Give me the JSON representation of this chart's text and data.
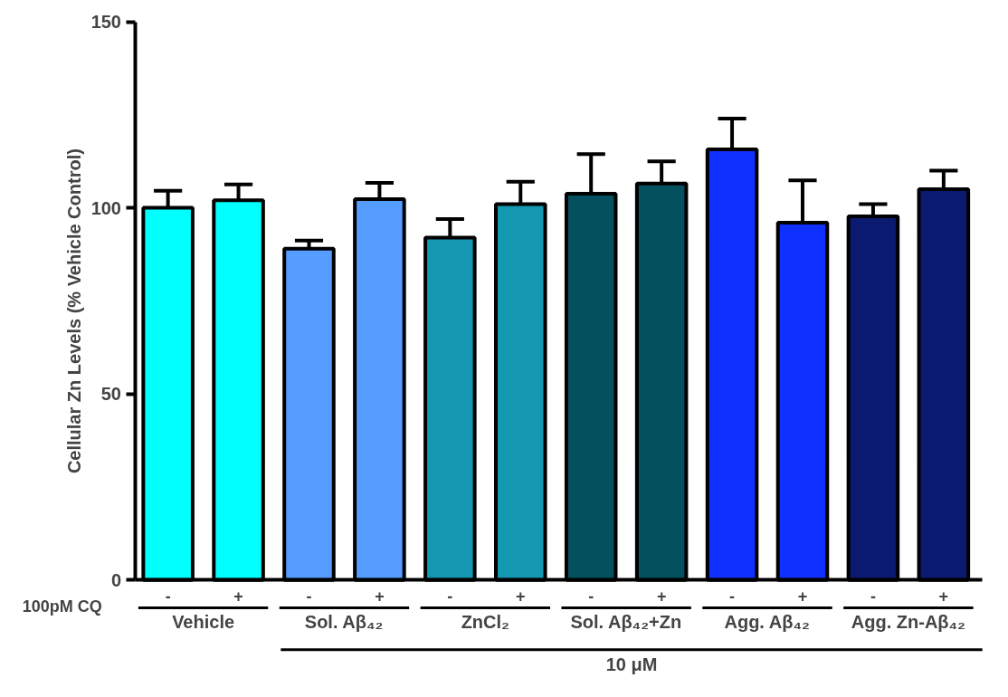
{
  "chart_data": {
    "type": "bar",
    "ylabel": "Cellular  Zn  Levels  (% Vehicle  Control)",
    "categories": [
      "-",
      "+",
      "-",
      "+",
      "-",
      "+",
      "-",
      "+",
      "-",
      "+",
      "-",
      "+"
    ],
    "values": [
      100,
      102,
      89,
      102.3,
      92,
      101,
      103.8,
      106.5,
      115.7,
      96,
      97.7,
      105
    ],
    "errors": [
      [
        100,
        104.6
      ],
      [
        102,
        106.3
      ],
      [
        89,
        91.2
      ],
      [
        102.3,
        106.7
      ],
      [
        92,
        97
      ],
      [
        101,
        107
      ],
      [
        103.8,
        114.4
      ],
      [
        106.5,
        112.5
      ],
      [
        115.7,
        124
      ],
      [
        96,
        107.4
      ],
      [
        97.7,
        101
      ],
      [
        105,
        110
      ]
    ],
    "colors": [
      "#00ffff",
      "#00ffff",
      "#559eff",
      "#559eff",
      "#1497b0",
      "#1497b0",
      "#05505f",
      "#05505f",
      "#1030ff",
      "#1030ff",
      "#0a1a70",
      "#0a1a70"
    ],
    "ylim": [
      0,
      150
    ],
    "yticks": [
      0,
      50,
      100,
      150
    ],
    "grid": false,
    "annotations": [
      "Vehicle",
      "Sol. Aβ₄₂",
      "ZnCl₂",
      "Sol. Aβ₄₂+Zn",
      "Agg. Aβ₄₂",
      "Agg. Zn-Aβ₄₂",
      "100pM CQ",
      "10 μM"
    ]
  }
}
